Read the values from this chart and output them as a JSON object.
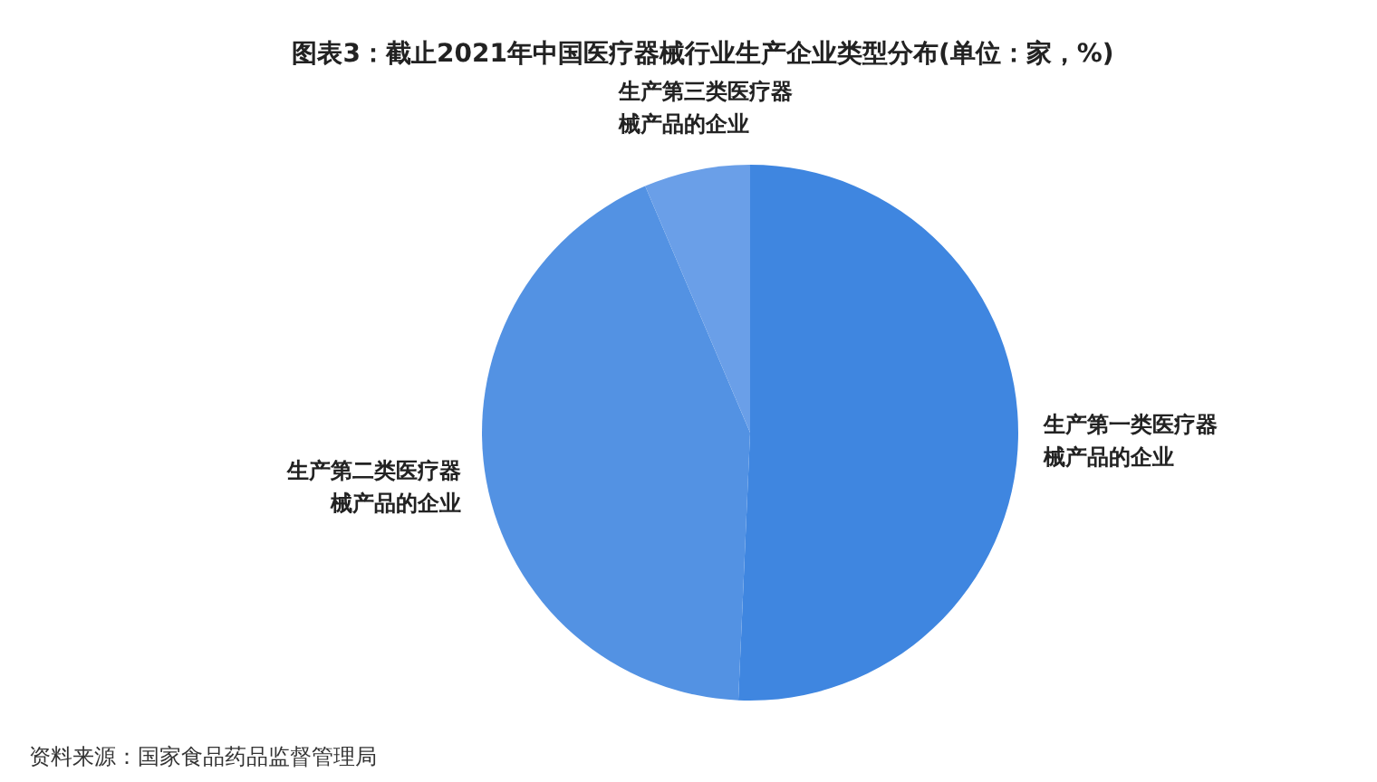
{
  "chart_data": {
    "type": "pie",
    "title": "图表3：截止2021年中国医疗器械行业生产企业类型分布(单位：家，%)",
    "categories": [
      "生产第一类医疗器械产品的企业",
      "生产第二类医疗器械产品的企业",
      "生产第三类医疗器械产品的企业"
    ],
    "values": [
      50.7,
      42.9,
      6.4
    ],
    "colors": [
      "#3f86e0",
      "#5392e3",
      "#6a9fe8"
    ],
    "legend": false,
    "annotations": [
      "资料来源：国家食品药品监督管理局"
    ]
  }
}
